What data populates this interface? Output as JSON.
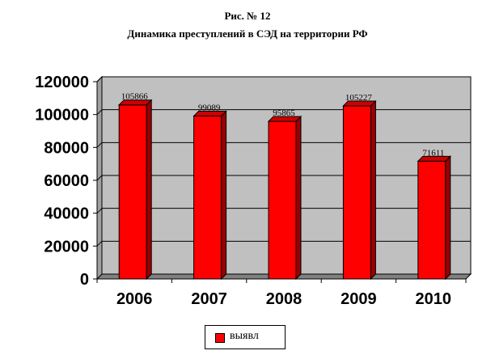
{
  "caption": {
    "figure_number": "Рис. № 12",
    "title": "Динамика преступлений в СЭД на территории РФ"
  },
  "colors": {
    "bar_front": "#ff0000",
    "bar_side": "#990000",
    "bar_top": "#cc0000",
    "plot_area": "#c0c0c0",
    "gridline": "#000000"
  },
  "chart_data": {
    "type": "bar",
    "categories": [
      "2006",
      "2007",
      "2008",
      "2009",
      "2010"
    ],
    "series": [
      {
        "name": "выявл",
        "values": [
          105866,
          99089,
          95865,
          105227,
          71611
        ]
      }
    ],
    "data_labels": [
      "105866",
      "99089",
      "95865",
      "105227",
      "71611"
    ],
    "ylim": [
      0,
      120000
    ],
    "yticks": [
      "0",
      "20000",
      "40000",
      "60000",
      "80000",
      "100000",
      "120000"
    ],
    "grid": true,
    "legend_position": "bottom",
    "legend_label": "выявл"
  }
}
